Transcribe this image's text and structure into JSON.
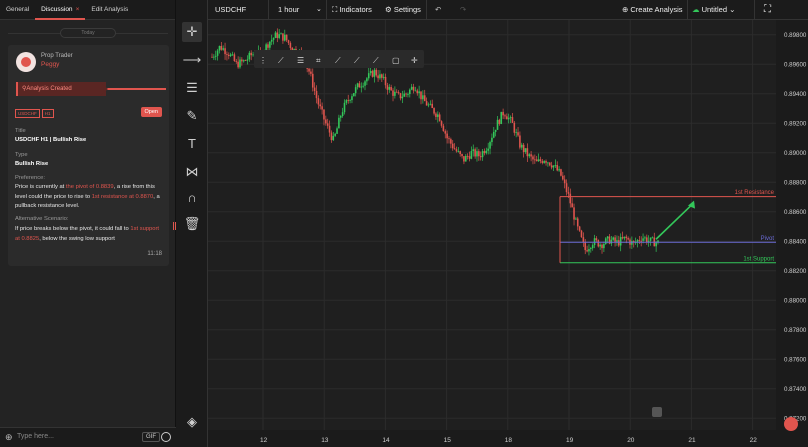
{
  "left_panel": {
    "tabs": [
      {
        "label": "General"
      },
      {
        "label": "Discussion",
        "close": "×"
      },
      {
        "label": "Edit Analysis"
      }
    ],
    "today_label": "Today",
    "message": {
      "author_role": "Prop Trader",
      "author_name": "Peggy",
      "event": "Analysis Created",
      "tags": [
        "USDCHF",
        "H1"
      ],
      "open_button": "Open",
      "title_label": "Title",
      "title_value": "USDCHF H1 | Bullish Rise",
      "type_label": "Type",
      "type_value": "Bullish Rise",
      "preference_label": "Preference:",
      "preference": {
        "p1": "Price is currently at ",
        "h1": "the pivot of 0.8839",
        "p2": ", a rise from this level could the price to rise to ",
        "h2": "1st resistance at 0.8870",
        "p3": ", a pullback resistance level."
      },
      "alternative_label": "Alternative Scenario:",
      "alternative": {
        "p1": "If price breaks below the pivot, it could fall to ",
        "h1": "1st support at 0.8825",
        "p2": ", below the swing low support"
      },
      "time": "11:18"
    },
    "input": {
      "placeholder": "Type here...",
      "gif_label": "GIF"
    }
  },
  "topbar": {
    "symbol": "USDCHF",
    "interval": "1 hour",
    "indicators_label": "Indicators",
    "settings_label": "Settings",
    "create_label": "Create Analysis",
    "untitled_label": "Untitled"
  },
  "chart_data": {
    "type": "candlestick",
    "x_ticks": [
      "12",
      "13",
      "14",
      "15",
      "18",
      "19",
      "20",
      "21",
      "22"
    ],
    "y_ticks": [
      "0.89800",
      "0.89600",
      "0.89400",
      "0.89200",
      "0.89000",
      "0.88800",
      "0.88600",
      "0.88400",
      "0.88200",
      "0.88000",
      "0.87800",
      "0.87600",
      "0.87400",
      "0.87200"
    ],
    "ylim": [
      0.8712,
      0.899
    ],
    "levels": [
      {
        "name": "1st Resistance",
        "value": 0.88702,
        "value_label": "0.88702",
        "color": "#e0554e"
      },
      {
        "name": "Pivot",
        "value": 0.88393,
        "value_label": "0.88393",
        "color": "#6b6bd6"
      },
      {
        "name": "1st Support",
        "value": 0.88254,
        "value_label": "0.88254",
        "color": "#33c75a"
      }
    ],
    "colors": {
      "up": "#33c75a",
      "down": "#e0554e",
      "grid": "#2c2c2c"
    },
    "close_path": [
      0.8965,
      0.8972,
      0.8968,
      0.896,
      0.8962,
      0.8967,
      0.8966,
      0.8975,
      0.898,
      0.8978,
      0.897,
      0.8967,
      0.8955,
      0.8935,
      0.892,
      0.8908,
      0.8928,
      0.8938,
      0.8945,
      0.895,
      0.8955,
      0.895,
      0.8942,
      0.8938,
      0.894,
      0.8946,
      0.8936,
      0.893,
      0.8925,
      0.891,
      0.8902,
      0.8895,
      0.89,
      0.8898,
      0.8905,
      0.8918,
      0.8928,
      0.892,
      0.8905,
      0.8898,
      0.8893,
      0.8896,
      0.8892,
      0.8885,
      0.887,
      0.885,
      0.8834,
      0.884,
      0.8838,
      0.8841,
      0.8839,
      0.8842,
      0.8838,
      0.8843,
      0.884,
      0.8839
    ]
  }
}
